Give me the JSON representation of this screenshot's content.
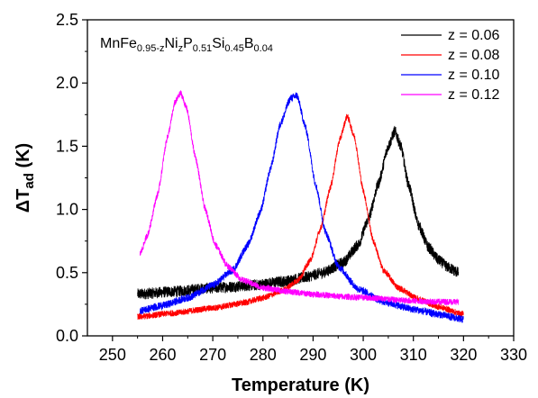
{
  "chart_data": {
    "type": "line",
    "annotation": {
      "parts": [
        {
          "text": "MnFe",
          "sub": false
        },
        {
          "text": "0.95-z",
          "sub": true
        },
        {
          "text": "Ni",
          "sub": false
        },
        {
          "text": "z",
          "sub": true
        },
        {
          "text": "P",
          "sub": false
        },
        {
          "text": "0.51",
          "sub": true
        },
        {
          "text": "Si",
          "sub": false
        },
        {
          "text": "0.45",
          "sub": true
        },
        {
          "text": "B",
          "sub": false
        },
        {
          "text": "0.04",
          "sub": true
        }
      ]
    },
    "xlabel": "Temperature (K)",
    "ylabel": {
      "main": "ΔT",
      "sub": "ad",
      "unit": " (K)"
    },
    "xlim": [
      245,
      330
    ],
    "ylim": [
      0,
      2.5
    ],
    "xticks": [
      "250",
      "260",
      "270",
      "280",
      "290",
      "300",
      "310",
      "320",
      "330"
    ],
    "yticks": [
      "0.0",
      "0.5",
      "1.0",
      "1.5",
      "2.0",
      "2.5"
    ],
    "legend_position": "top-right",
    "series": [
      {
        "name": "z = 0.06",
        "color": "#000000",
        "noise": 0.045,
        "points": [
          [
            255,
            0.33
          ],
          [
            262,
            0.35
          ],
          [
            270,
            0.38
          ],
          [
            278,
            0.4
          ],
          [
            284,
            0.43
          ],
          [
            288,
            0.46
          ],
          [
            292,
            0.5
          ],
          [
            296,
            0.58
          ],
          [
            299,
            0.72
          ],
          [
            301,
            0.92
          ],
          [
            303,
            1.2
          ],
          [
            305,
            1.5
          ],
          [
            306.3,
            1.62
          ],
          [
            307.5,
            1.5
          ],
          [
            309,
            1.2
          ],
          [
            311,
            0.88
          ],
          [
            313,
            0.7
          ],
          [
            315,
            0.6
          ],
          [
            317,
            0.54
          ],
          [
            319,
            0.5
          ]
        ]
      },
      {
        "name": "z = 0.08",
        "color": "#ff0000",
        "noise": 0.025,
        "points": [
          [
            255,
            0.15
          ],
          [
            262,
            0.18
          ],
          [
            270,
            0.22
          ],
          [
            276,
            0.26
          ],
          [
            280,
            0.3
          ],
          [
            284,
            0.36
          ],
          [
            287,
            0.44
          ],
          [
            289.5,
            0.6
          ],
          [
            291.5,
            0.85
          ],
          [
            293.5,
            1.18
          ],
          [
            295.3,
            1.55
          ],
          [
            296.8,
            1.74
          ],
          [
            298.2,
            1.58
          ],
          [
            300,
            1.15
          ],
          [
            302,
            0.75
          ],
          [
            304,
            0.52
          ],
          [
            307,
            0.38
          ],
          [
            311,
            0.29
          ],
          [
            315,
            0.23
          ],
          [
            320,
            0.17
          ]
        ]
      },
      {
        "name": "z = 0.10",
        "color": "#0000ff",
        "noise": 0.03,
        "points": [
          [
            255.5,
            0.2
          ],
          [
            260,
            0.24
          ],
          [
            265,
            0.3
          ],
          [
            270,
            0.4
          ],
          [
            274,
            0.52
          ],
          [
            277,
            0.72
          ],
          [
            279.5,
            0.98
          ],
          [
            281.5,
            1.32
          ],
          [
            283.5,
            1.68
          ],
          [
            285.5,
            1.88
          ],
          [
            286.8,
            1.9
          ],
          [
            288.5,
            1.65
          ],
          [
            290.5,
            1.2
          ],
          [
            292.5,
            0.82
          ],
          [
            295,
            0.55
          ],
          [
            299,
            0.37
          ],
          [
            304,
            0.27
          ],
          [
            310,
            0.21
          ],
          [
            315,
            0.17
          ],
          [
            320,
            0.13
          ]
        ]
      },
      {
        "name": "z = 0.12",
        "color": "#ff00ff",
        "noise": 0.025,
        "points": [
          [
            255.5,
            0.65
          ],
          [
            257,
            0.8
          ],
          [
            259,
            1.12
          ],
          [
            261,
            1.58
          ],
          [
            262.5,
            1.85
          ],
          [
            263.6,
            1.92
          ],
          [
            264.8,
            1.8
          ],
          [
            266.5,
            1.42
          ],
          [
            268.5,
            1.0
          ],
          [
            270.5,
            0.72
          ],
          [
            273,
            0.55
          ],
          [
            276,
            0.44
          ],
          [
            280,
            0.38
          ],
          [
            285,
            0.35
          ],
          [
            290,
            0.33
          ],
          [
            296,
            0.31
          ],
          [
            302,
            0.3
          ],
          [
            308,
            0.28
          ],
          [
            314,
            0.27
          ],
          [
            319,
            0.27
          ]
        ]
      }
    ]
  }
}
